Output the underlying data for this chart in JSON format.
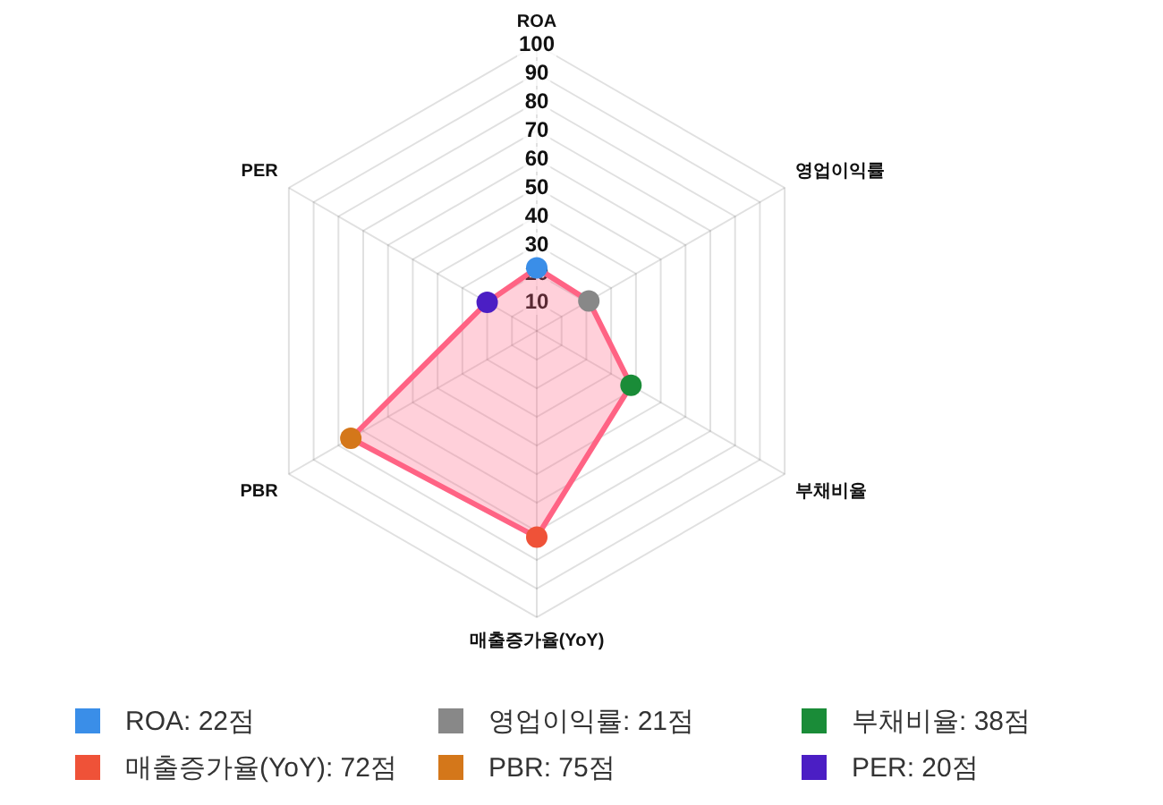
{
  "chart_data": {
    "type": "radar",
    "categories": [
      "ROA",
      "영업이익률",
      "부채비율",
      "매출증가율(YoY)",
      "PBR",
      "PER"
    ],
    "series": [
      {
        "color": "#ff6384",
        "values": [
          22,
          21,
          38,
          72,
          75,
          20
        ],
        "colors": [
          "#3a8ee8",
          "#888888",
          "#1a8c38",
          "#ef5238",
          "#d4771a",
          "#4b1ec4"
        ]
      }
    ],
    "ylim": [
      0,
      100
    ],
    "yticks": [
      10,
      20,
      30,
      40,
      50,
      60,
      70,
      80,
      90,
      100
    ],
    "grid": true,
    "marker": "circle",
    "annotations": [
      "ROA: 22점",
      "영업이익률: 21점",
      "부채비율: 38점",
      "매출증가율(YoY): 72점",
      "PBR: 75점",
      "PER: 20점"
    ]
  }
}
